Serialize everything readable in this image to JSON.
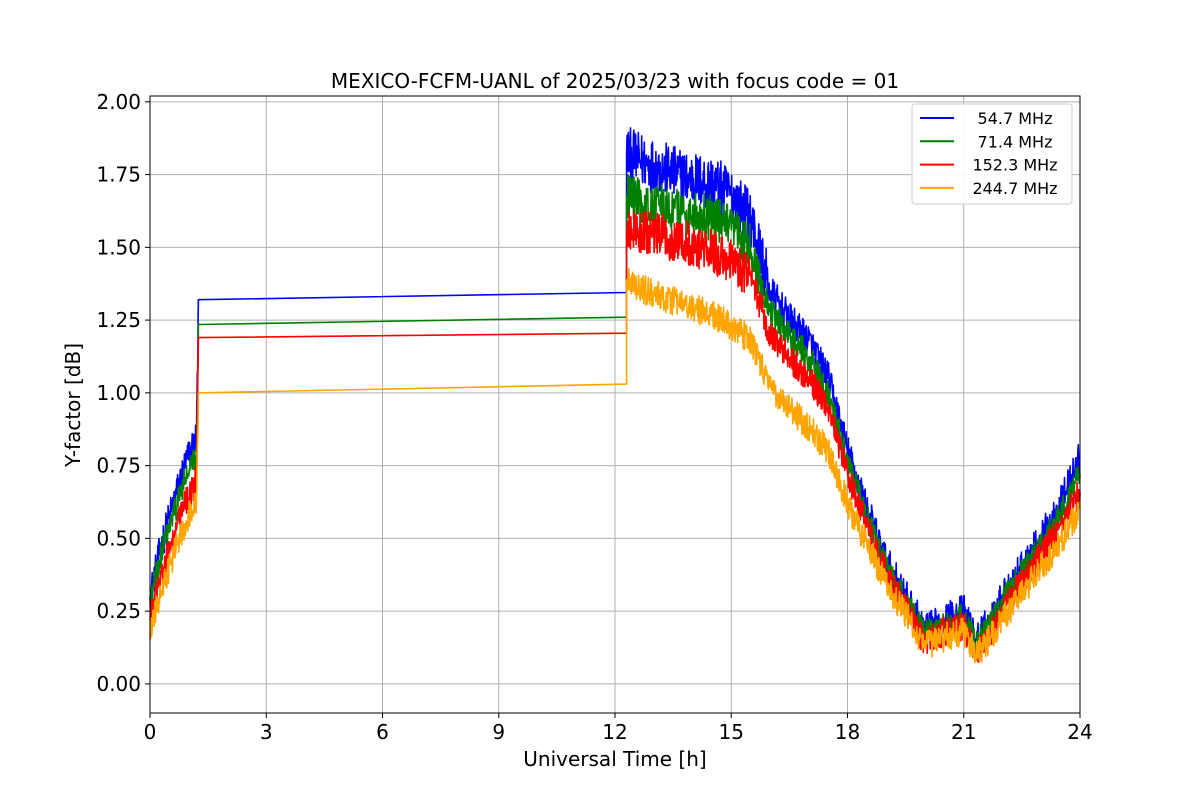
{
  "chart_data": {
    "type": "line",
    "title": "MEXICO-FCFM-UANL of 2025/03/23 with focus code = 01",
    "xlabel": "Universal Time [h]",
    "ylabel": "Y-factor [dB]",
    "xlim": [
      0,
      24
    ],
    "ylim": [
      -0.1,
      2.02
    ],
    "xticks": [
      0,
      3,
      6,
      9,
      12,
      15,
      18,
      21,
      24
    ],
    "xtick_labels": [
      "0",
      "3",
      "6",
      "9",
      "12",
      "15",
      "18",
      "21",
      "24"
    ],
    "yticks": [
      0,
      0.25,
      0.5,
      0.75,
      1.0,
      1.25,
      1.5,
      1.75,
      2.0
    ],
    "ytick_labels": [
      "0.00",
      "0.25",
      "0.50",
      "0.75",
      "1.00",
      "1.25",
      "1.50",
      "1.75",
      "2.00"
    ],
    "grid": true,
    "legend_position": "top-right",
    "series": [
      {
        "name": "54.7 MHz",
        "color": "#0000ff",
        "noise": 0.06,
        "points": [
          [
            0.0,
            0.3
          ],
          [
            0.3,
            0.48
          ],
          [
            0.6,
            0.62
          ],
          [
            0.9,
            0.75
          ],
          [
            1.2,
            0.85
          ],
          [
            1.25,
            1.32
          ],
          [
            12.3,
            1.345
          ],
          [
            12.3,
            1.82
          ],
          [
            13.0,
            1.78
          ],
          [
            13.8,
            1.74
          ],
          [
            14.5,
            1.72
          ],
          [
            15.0,
            1.68
          ],
          [
            15.5,
            1.6
          ],
          [
            16.0,
            1.35
          ],
          [
            16.5,
            1.25
          ],
          [
            17.0,
            1.18
          ],
          [
            17.5,
            1.05
          ],
          [
            18.0,
            0.8
          ],
          [
            18.5,
            0.6
          ],
          [
            19.0,
            0.42
          ],
          [
            19.5,
            0.3
          ],
          [
            20.0,
            0.18
          ],
          [
            20.5,
            0.22
          ],
          [
            21.0,
            0.25
          ],
          [
            21.3,
            0.15
          ],
          [
            21.7,
            0.22
          ],
          [
            22.0,
            0.3
          ],
          [
            22.5,
            0.4
          ],
          [
            23.0,
            0.5
          ],
          [
            23.5,
            0.62
          ],
          [
            24.0,
            0.78
          ]
        ]
      },
      {
        "name": "71.4 MHz",
        "color": "#008000",
        "noise": 0.05,
        "points": [
          [
            0.0,
            0.28
          ],
          [
            0.3,
            0.45
          ],
          [
            0.6,
            0.58
          ],
          [
            0.9,
            0.7
          ],
          [
            1.2,
            0.78
          ],
          [
            1.25,
            1.235
          ],
          [
            12.3,
            1.26
          ],
          [
            12.3,
            1.68
          ],
          [
            13.0,
            1.64
          ],
          [
            13.8,
            1.62
          ],
          [
            14.5,
            1.6
          ],
          [
            15.0,
            1.56
          ],
          [
            15.5,
            1.5
          ],
          [
            16.0,
            1.28
          ],
          [
            16.5,
            1.2
          ],
          [
            17.0,
            1.12
          ],
          [
            17.5,
            1.0
          ],
          [
            18.0,
            0.76
          ],
          [
            18.5,
            0.57
          ],
          [
            19.0,
            0.4
          ],
          [
            19.5,
            0.28
          ],
          [
            20.0,
            0.17
          ],
          [
            20.5,
            0.2
          ],
          [
            21.0,
            0.23
          ],
          [
            21.3,
            0.14
          ],
          [
            21.7,
            0.2
          ],
          [
            22.0,
            0.28
          ],
          [
            22.5,
            0.38
          ],
          [
            23.0,
            0.47
          ],
          [
            23.5,
            0.58
          ],
          [
            24.0,
            0.72
          ]
        ]
      },
      {
        "name": "152.3 MHz",
        "color": "#ff0000",
        "noise": 0.05,
        "points": [
          [
            0.0,
            0.22
          ],
          [
            0.3,
            0.38
          ],
          [
            0.6,
            0.5
          ],
          [
            0.9,
            0.62
          ],
          [
            1.2,
            0.7
          ],
          [
            1.25,
            1.19
          ],
          [
            12.3,
            1.205
          ],
          [
            12.3,
            1.56
          ],
          [
            13.0,
            1.54
          ],
          [
            13.8,
            1.52
          ],
          [
            14.5,
            1.48
          ],
          [
            15.0,
            1.45
          ],
          [
            15.5,
            1.4
          ],
          [
            16.0,
            1.2
          ],
          [
            16.5,
            1.12
          ],
          [
            17.0,
            1.05
          ],
          [
            17.5,
            0.95
          ],
          [
            18.0,
            0.72
          ],
          [
            18.5,
            0.54
          ],
          [
            19.0,
            0.38
          ],
          [
            19.5,
            0.26
          ],
          [
            20.0,
            0.14
          ],
          [
            20.5,
            0.18
          ],
          [
            21.0,
            0.2
          ],
          [
            21.3,
            0.1
          ],
          [
            21.7,
            0.18
          ],
          [
            22.0,
            0.25
          ],
          [
            22.5,
            0.35
          ],
          [
            23.0,
            0.44
          ],
          [
            23.5,
            0.55
          ],
          [
            24.0,
            0.66
          ]
        ]
      },
      {
        "name": "244.7 MHz",
        "color": "#ffa500",
        "noise": 0.05,
        "points": [
          [
            0.0,
            0.18
          ],
          [
            0.3,
            0.32
          ],
          [
            0.6,
            0.44
          ],
          [
            0.9,
            0.55
          ],
          [
            1.2,
            0.64
          ],
          [
            1.25,
            1.0
          ],
          [
            12.3,
            1.03
          ],
          [
            12.3,
            1.38
          ],
          [
            13.0,
            1.34
          ],
          [
            13.8,
            1.3
          ],
          [
            14.5,
            1.27
          ],
          [
            15.0,
            1.23
          ],
          [
            15.5,
            1.18
          ],
          [
            16.0,
            1.02
          ],
          [
            16.5,
            0.95
          ],
          [
            17.0,
            0.88
          ],
          [
            17.5,
            0.8
          ],
          [
            18.0,
            0.62
          ],
          [
            18.5,
            0.48
          ],
          [
            19.0,
            0.34
          ],
          [
            19.5,
            0.24
          ],
          [
            20.0,
            0.13
          ],
          [
            20.5,
            0.16
          ],
          [
            21.0,
            0.18
          ],
          [
            21.3,
            0.1
          ],
          [
            21.7,
            0.16
          ],
          [
            22.0,
            0.22
          ],
          [
            22.5,
            0.31
          ],
          [
            23.0,
            0.4
          ],
          [
            23.5,
            0.49
          ],
          [
            24.0,
            0.6
          ]
        ]
      }
    ]
  }
}
